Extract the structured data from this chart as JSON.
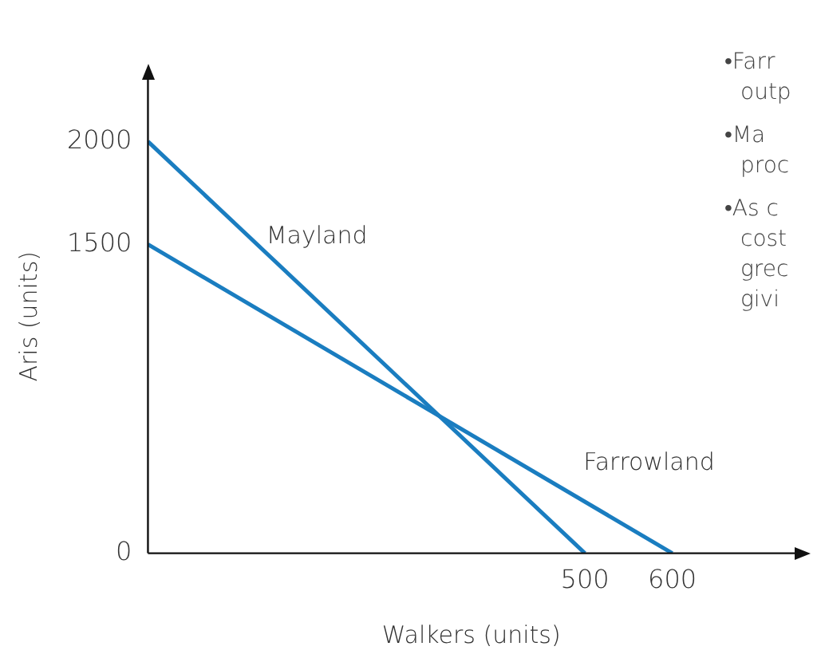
{
  "chart_data": {
    "type": "line",
    "xlabel": "Walkers (units)",
    "ylabel": "Aris (units)",
    "series": [
      {
        "name": "Mayland",
        "color": "#1a7dc0",
        "x": [
          0,
          500
        ],
        "values": [
          2000,
          0
        ]
      },
      {
        "name": "Farrowland",
        "color": "#1a7dc0",
        "x": [
          0,
          600
        ],
        "values": [
          1500,
          0
        ]
      }
    ],
    "xlim": [
      0,
      740
    ],
    "ylim": [
      0,
      2300
    ],
    "xticks": [
      500,
      600
    ],
    "yticks": [
      0,
      1500,
      2000
    ],
    "grid": false,
    "legend": false,
    "marker": "none",
    "line_style": "solid",
    "annotations": [
      "•Farr",
      "outp",
      "•Ma",
      "proc",
      "•As c",
      "cost",
      "grec",
      "givi"
    ]
  }
}
